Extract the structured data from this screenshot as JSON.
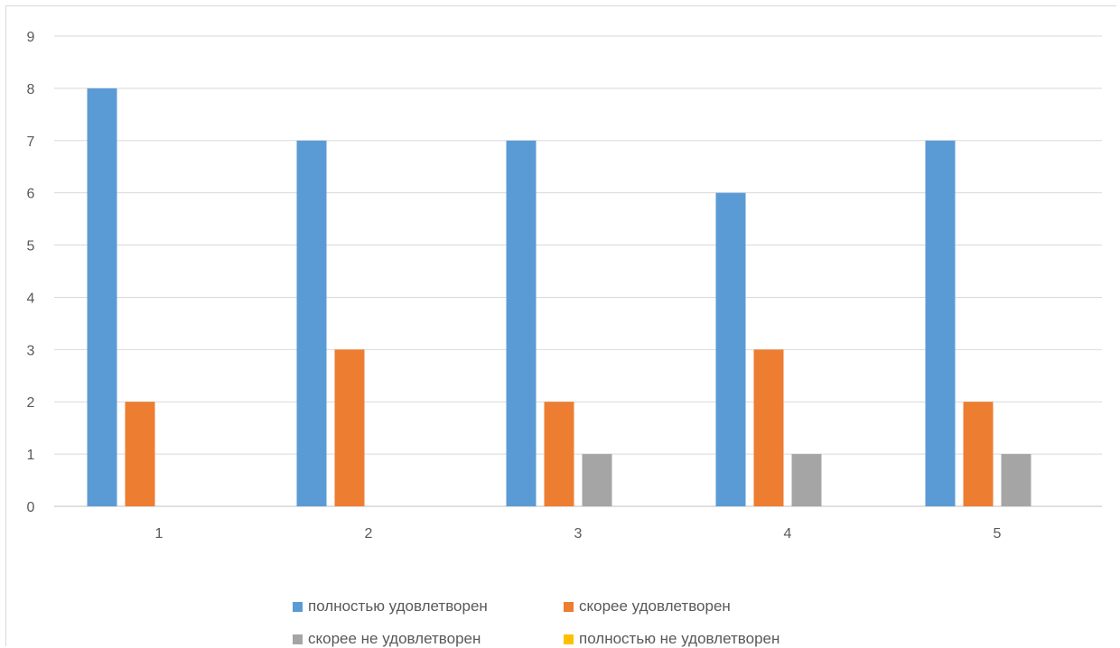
{
  "chart_data": {
    "type": "bar",
    "categories": [
      "1",
      "2",
      "3",
      "4",
      "5"
    ],
    "series": [
      {
        "name": "полностью удовлетворен",
        "color": "#5b9bd5",
        "values": [
          8,
          7,
          7,
          6,
          7
        ]
      },
      {
        "name": "скорее удовлетворен",
        "color": "#ed7d31",
        "values": [
          2,
          3,
          2,
          3,
          2
        ]
      },
      {
        "name": "скорее не удовлетворен",
        "color": "#a5a5a5",
        "values": [
          0,
          0,
          1,
          1,
          1
        ]
      },
      {
        "name": "полностью не удовлетворен",
        "color": "#ffc000",
        "values": [
          0,
          0,
          0,
          0,
          0
        ]
      }
    ],
    "y_ticks": [
      "0",
      "1",
      "2",
      "3",
      "4",
      "5",
      "6",
      "7",
      "8",
      "9"
    ],
    "ylim": [
      0,
      9
    ],
    "grid": true,
    "legend_position": "bottom"
  }
}
